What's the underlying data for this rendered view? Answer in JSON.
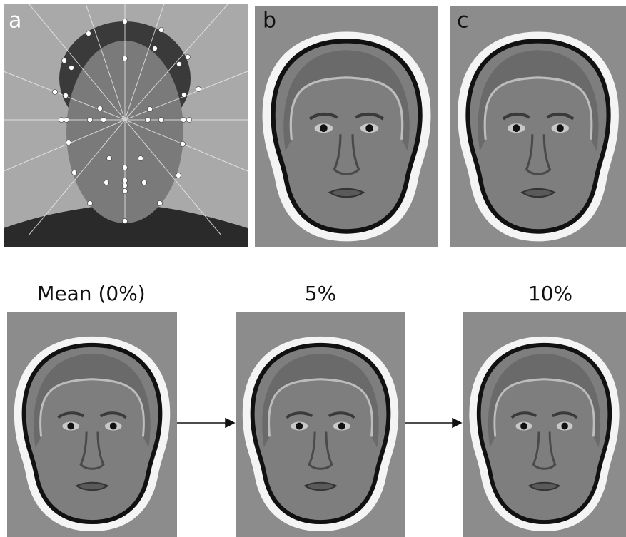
{
  "panel_labels": [
    "a",
    "b",
    "c"
  ],
  "morph_labels": [
    "Mean (0%)",
    "5%",
    "10%"
  ]
}
